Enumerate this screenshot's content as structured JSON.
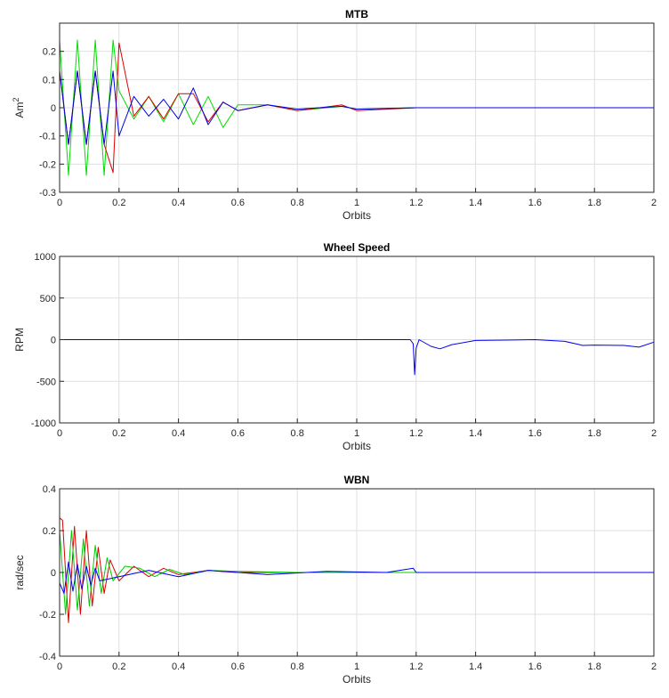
{
  "chart_data": [
    {
      "type": "line",
      "title": "MTB",
      "xlabel": "Orbits",
      "ylabel_base": "Am",
      "ylabel_sup": "2",
      "xlim": [
        0,
        2
      ],
      "ylim": [
        -0.3,
        0.3
      ],
      "xticks": [
        0,
        0.2,
        0.4,
        0.6,
        0.8,
        1,
        1.2,
        1.4,
        1.6,
        1.8,
        2
      ],
      "xtick_labels": [
        "0",
        "0.2",
        "0.4",
        "0.6",
        "0.8",
        "1",
        "1.2",
        "1.4",
        "1.6",
        "1.8",
        "2"
      ],
      "yticks": [
        -0.3,
        -0.2,
        -0.1,
        0,
        0.1,
        0.2
      ],
      "ytick_labels": [
        "-0.3",
        "-0.2",
        "-0.1",
        "0",
        "0.1",
        "0.2"
      ],
      "grid": true,
      "series": [
        {
          "color": "#00dd00",
          "x": [
            0.0,
            0.03,
            0.06,
            0.09,
            0.12,
            0.15,
            0.18,
            0.2,
            0.25,
            0.3,
            0.35,
            0.4,
            0.45,
            0.5,
            0.55,
            0.6,
            0.7,
            0.8,
            0.95,
            1.0,
            1.2,
            1.5,
            1.8,
            2.0
          ],
          "y": [
            0.24,
            -0.24,
            0.24,
            -0.24,
            0.24,
            -0.24,
            0.24,
            0.06,
            -0.04,
            0.04,
            -0.05,
            0.05,
            -0.06,
            0.04,
            -0.07,
            0.01,
            0.01,
            -0.01,
            0.005,
            -0.005,
            0.0,
            0.0,
            0.0,
            0.0
          ]
        },
        {
          "color": "#dd0000",
          "x": [
            0.0,
            0.03,
            0.06,
            0.09,
            0.12,
            0.15,
            0.18,
            0.2,
            0.25,
            0.3,
            0.35,
            0.4,
            0.45,
            0.5,
            0.55,
            0.6,
            0.7,
            0.8,
            0.95,
            1.0,
            1.2,
            1.5,
            1.8,
            2.0
          ],
          "y": [
            0.13,
            -0.13,
            0.13,
            -0.13,
            0.13,
            -0.13,
            -0.23,
            0.23,
            -0.03,
            0.04,
            -0.04,
            0.05,
            0.05,
            -0.05,
            0.02,
            -0.01,
            0.01,
            -0.01,
            0.01,
            -0.01,
            0.0,
            0.0,
            0.0,
            0.0
          ]
        },
        {
          "color": "#0000dd",
          "x": [
            0.0,
            0.03,
            0.06,
            0.09,
            0.12,
            0.15,
            0.18,
            0.2,
            0.25,
            0.3,
            0.35,
            0.4,
            0.45,
            0.5,
            0.55,
            0.6,
            0.7,
            0.8,
            0.95,
            1.0,
            1.2,
            1.5,
            1.8,
            2.0
          ],
          "y": [
            0.13,
            -0.13,
            0.13,
            -0.13,
            0.13,
            -0.13,
            0.13,
            -0.1,
            0.04,
            -0.03,
            0.03,
            -0.04,
            0.07,
            -0.06,
            0.02,
            -0.01,
            0.01,
            -0.005,
            0.005,
            -0.005,
            0.0,
            0.0,
            0.0,
            0.0
          ]
        }
      ]
    },
    {
      "type": "line",
      "title": "Wheel Speed",
      "xlabel": "Orbits",
      "ylabel": "RPM",
      "xlim": [
        0,
        2
      ],
      "ylim": [
        -1000,
        1000
      ],
      "xticks": [
        0,
        0.2,
        0.4,
        0.6,
        0.8,
        1,
        1.2,
        1.4,
        1.6,
        1.8,
        2
      ],
      "xtick_labels": [
        "0",
        "0.2",
        "0.4",
        "0.6",
        "0.8",
        "1",
        "1.2",
        "1.4",
        "1.6",
        "1.8",
        "2"
      ],
      "yticks": [
        -1000,
        -500,
        0,
        500,
        1000
      ],
      "ytick_labels": [
        "-1000",
        "-500",
        "0",
        "500",
        "1000"
      ],
      "grid": true,
      "series": [
        {
          "color": "#0000ee",
          "x": [
            0.0,
            1.18,
            1.19,
            1.195,
            1.2,
            1.21,
            1.25,
            1.28,
            1.32,
            1.4,
            1.5,
            1.6,
            1.7,
            1.75,
            1.76,
            1.8,
            1.9,
            1.95,
            2.0
          ],
          "y": [
            0,
            0,
            -50,
            -420,
            -100,
            0,
            -80,
            -110,
            -60,
            -10,
            -5,
            0,
            -20,
            -60,
            -70,
            -65,
            -70,
            -90,
            -30
          ]
        }
      ]
    },
    {
      "type": "line",
      "title": "WBN",
      "xlabel": "Orbits",
      "ylabel": "rad/sec",
      "xlim": [
        0,
        2
      ],
      "ylim": [
        -0.4,
        0.4
      ],
      "xticks": [
        0,
        0.2,
        0.4,
        0.6,
        0.8,
        1,
        1.2,
        1.4,
        1.6,
        1.8,
        2
      ],
      "xtick_labels": [
        "0",
        "0.2",
        "0.4",
        "0.6",
        "0.8",
        "1",
        "1.2",
        "1.4",
        "1.6",
        "1.8",
        "2"
      ],
      "yticks": [
        -0.4,
        -0.2,
        0,
        0.2,
        0.4
      ],
      "ytick_labels": [
        "-0.4",
        "-0.2",
        "0",
        "0.2",
        "0.4"
      ],
      "grid": true,
      "series": [
        {
          "color": "#dd0000",
          "x": [
            0.0,
            0.01,
            0.03,
            0.05,
            0.07,
            0.09,
            0.11,
            0.13,
            0.15,
            0.17,
            0.2,
            0.25,
            0.3,
            0.35,
            0.4,
            0.5,
            0.6,
            0.8,
            1.0,
            1.2,
            1.5,
            2.0
          ],
          "y": [
            0.26,
            0.25,
            -0.24,
            0.22,
            -0.2,
            0.2,
            -0.16,
            0.12,
            -0.1,
            0.06,
            -0.04,
            0.03,
            -0.02,
            0.02,
            -0.01,
            0.01,
            0.0,
            0.0,
            0.0,
            0.0,
            0.0,
            0.0
          ]
        },
        {
          "color": "#00cc00",
          "x": [
            0.0,
            0.02,
            0.04,
            0.06,
            0.08,
            0.1,
            0.12,
            0.14,
            0.16,
            0.18,
            0.22,
            0.27,
            0.32,
            0.37,
            0.42,
            0.5,
            0.6,
            0.8,
            1.0,
            1.2,
            1.5,
            2.0
          ],
          "y": [
            0.2,
            -0.2,
            0.2,
            -0.18,
            0.16,
            -0.16,
            0.13,
            -0.1,
            0.07,
            -0.04,
            0.03,
            0.02,
            -0.02,
            0.015,
            -0.01,
            0.01,
            0.005,
            0.0,
            0.0,
            0.0,
            0.0,
            0.0
          ]
        },
        {
          "color": "#0000ee",
          "x": [
            0.0,
            0.015,
            0.03,
            0.045,
            0.06,
            0.075,
            0.09,
            0.105,
            0.12,
            0.135,
            0.2,
            0.3,
            0.4,
            0.5,
            0.7,
            0.9,
            1.1,
            1.19,
            1.2,
            1.3,
            1.6,
            2.0
          ],
          "y": [
            -0.05,
            -0.1,
            0.05,
            -0.09,
            0.04,
            -0.08,
            0.03,
            -0.06,
            0.02,
            -0.04,
            -0.02,
            0.01,
            -0.02,
            0.01,
            -0.01,
            0.005,
            0.0,
            0.02,
            0.0,
            0.0,
            0.0,
            0.0
          ]
        }
      ]
    }
  ]
}
